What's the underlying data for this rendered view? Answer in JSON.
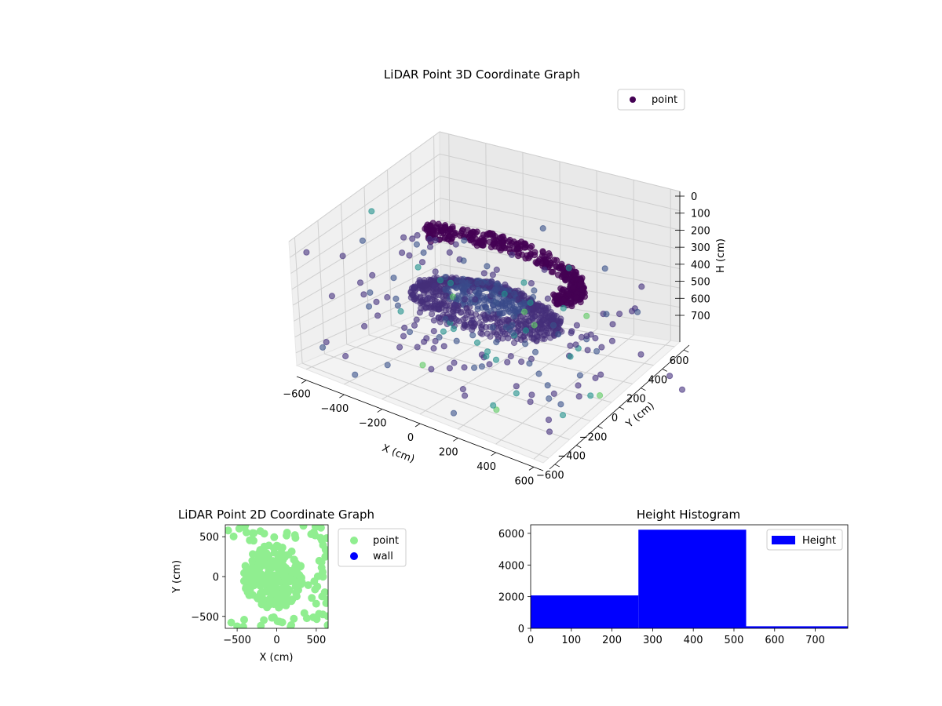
{
  "chart_data": [
    {
      "type": "scatter3d",
      "title": "LiDAR Point 3D Coordinate Graph",
      "xlabel": "X (cm)",
      "ylabel": "Y (cm)",
      "zlabel": "H (cm)",
      "x_ticks": [
        -600,
        -400,
        -200,
        0,
        200,
        400,
        600
      ],
      "y_ticks": [
        -600,
        -400,
        -200,
        0,
        200,
        400,
        600
      ],
      "z_ticks": [
        0,
        100,
        200,
        300,
        400,
        500,
        600,
        700
      ],
      "xlim": [
        -650,
        650
      ],
      "ylim": [
        -650,
        650
      ],
      "zlim": [
        0,
        780
      ],
      "z_inverted": true,
      "grid": true,
      "legend": {
        "entries": [
          "point"
        ],
        "placement": "top-right"
      },
      "colors": {
        "low": "#440154",
        "mid": "#3b528b",
        "high": "#5ec962",
        "peak": "#fde725"
      },
      "description_shapes": {
        "ring_x_range": [
          -560,
          560
        ],
        "ring_height": 280,
        "dome_base_height": 350
      }
    },
    {
      "type": "scatter",
      "title": "LiDAR Point 2D Coordinate Graph",
      "xlabel": "X (cm)",
      "ylabel": "Y (cm)",
      "x_ticks": [
        -500,
        0,
        500
      ],
      "y_ticks": [
        -500,
        0,
        500
      ],
      "xlim": [
        -650,
        650
      ],
      "ylim": [
        -650,
        650
      ],
      "series": [
        {
          "name": "point",
          "color": "#90ee90"
        },
        {
          "name": "wall",
          "color": "#0000ff"
        }
      ],
      "legend": {
        "placement": "right-outside"
      }
    },
    {
      "type": "bar",
      "title": "Height Histogram",
      "bins": [
        [
          0,
          265
        ],
        [
          265,
          530
        ],
        [
          530,
          780
        ]
      ],
      "values": [
        2080,
        6230,
        130
      ],
      "x_ticks": [
        0,
        100,
        200,
        300,
        400,
        500,
        600,
        700
      ],
      "y_ticks": [
        0,
        2000,
        4000,
        6000
      ],
      "xlim": [
        0,
        780
      ],
      "ylim": [
        0,
        6540
      ],
      "color": "#0000ff",
      "legend": {
        "entries": [
          "Height"
        ],
        "placement": "top-right"
      }
    }
  ]
}
